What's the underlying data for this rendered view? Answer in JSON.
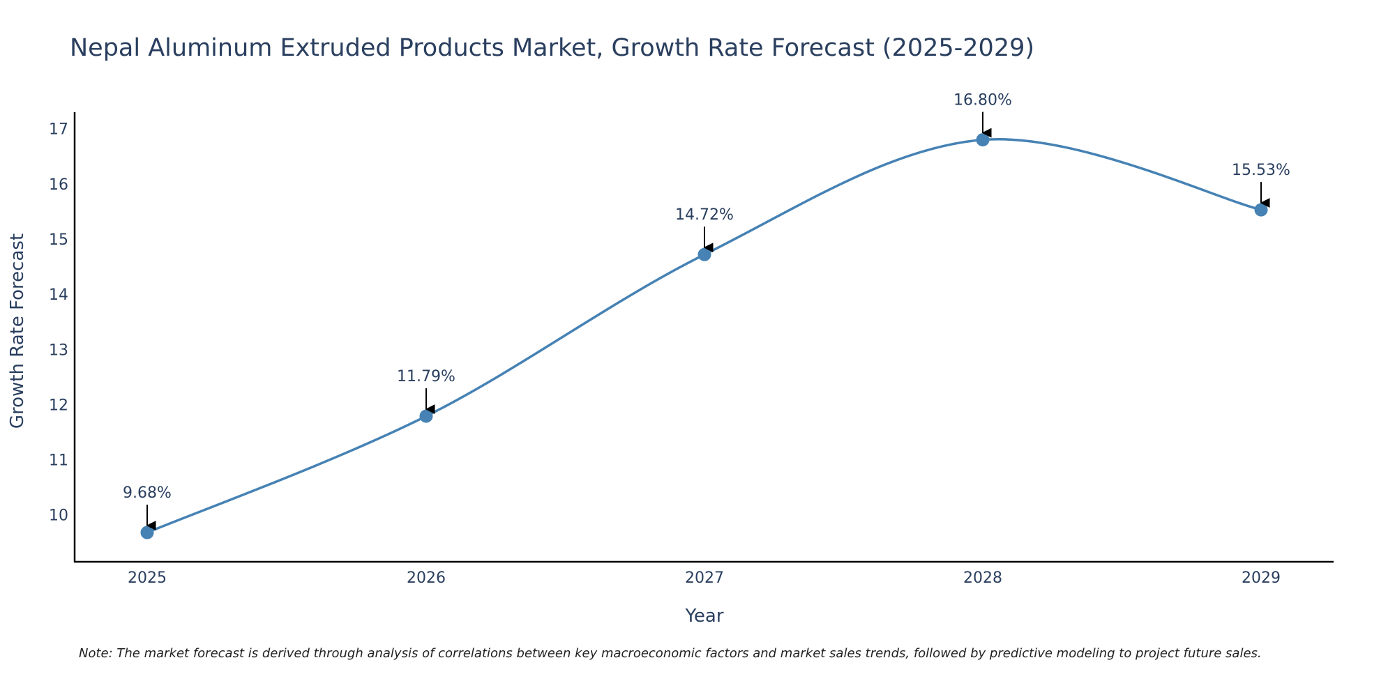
{
  "chart_data": {
    "type": "line",
    "title": "Nepal Aluminum Extruded Products Market, Growth Rate Forecast (2025-2029)",
    "xlabel": "Year",
    "ylabel": "Growth Rate Forecast",
    "categories": [
      "2025",
      "2026",
      "2027",
      "2028",
      "2029"
    ],
    "values": [
      9.68,
      11.79,
      14.72,
      16.8,
      15.53
    ],
    "data_labels": [
      "9.68%",
      "11.79%",
      "14.72%",
      "16.80%",
      "15.53%"
    ],
    "yticks": [
      10,
      11,
      12,
      13,
      14,
      15,
      16,
      17
    ],
    "ylim": [
      9.15,
      17.3
    ],
    "grid": false,
    "line_shape": "spline",
    "series_color": "#4682b4",
    "axis_color": "#000000",
    "text_color": "#2a3f5f"
  },
  "note": "Note: The market forecast is derived through analysis of correlations between key macroeconomic factors and market sales trends, followed by predictive modeling to project future sales."
}
